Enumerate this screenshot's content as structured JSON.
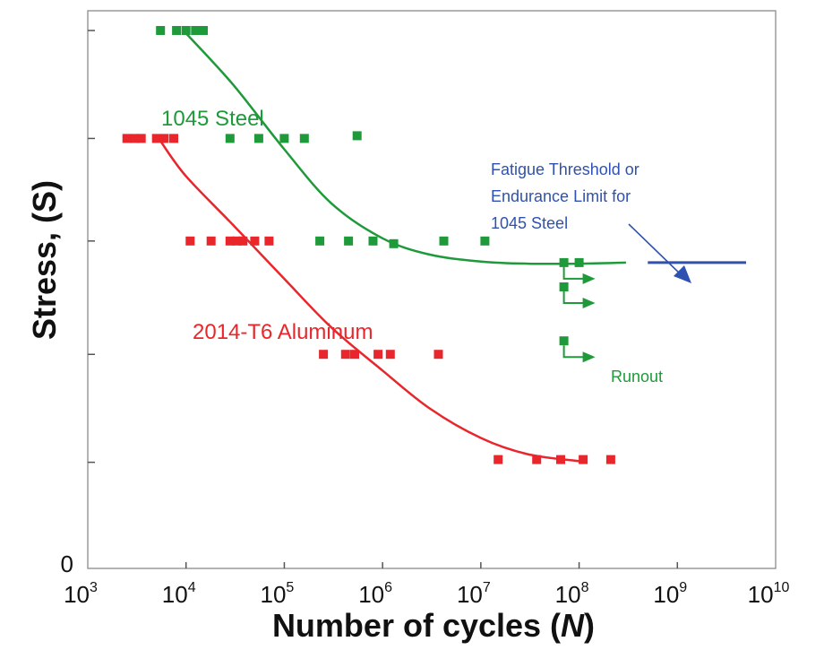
{
  "chart_data": {
    "type": "scatter",
    "xscale": "log",
    "xlabel": "Number of cycles (N)",
    "xlabel_parts": {
      "text": "Number of cycles (",
      "var": "N",
      "close": ")"
    },
    "ylabel": "Stress, (S)",
    "xlim": [
      1000,
      10000000000
    ],
    "ylim": [
      0,
      100
    ],
    "x_ticks": [
      {
        "value": 1000,
        "base": "10",
        "exp": "3"
      },
      {
        "value": 10000,
        "base": "10",
        "exp": "4"
      },
      {
        "value": 100000,
        "base": "10",
        "exp": "5"
      },
      {
        "value": 1000000,
        "base": "10",
        "exp": "6"
      },
      {
        "value": 10000000,
        "base": "10",
        "exp": "7"
      },
      {
        "value": 100000000,
        "base": "10",
        "exp": "8"
      },
      {
        "value": 1000000000,
        "base": "10",
        "exp": "9"
      },
      {
        "value": 10000000000,
        "base": "10",
        "exp": "10"
      }
    ],
    "y_ticks": [
      {
        "value": 0,
        "label": "0"
      },
      {
        "value": 18,
        "label": ""
      },
      {
        "value": 38,
        "label": ""
      },
      {
        "value": 59,
        "label": ""
      },
      {
        "value": 78,
        "label": ""
      },
      {
        "value": 98,
        "label": ""
      }
    ],
    "grid": false,
    "legend": "none",
    "series": [
      {
        "name": "1045 Steel",
        "color": "#1e9a3a",
        "points": [
          {
            "x": 5500,
            "y": 98
          },
          {
            "x": 8000,
            "y": 98
          },
          {
            "x": 10000,
            "y": 98
          },
          {
            "x": 12500,
            "y": 98
          },
          {
            "x": 15000,
            "y": 98
          },
          {
            "x": 28000,
            "y": 78
          },
          {
            "x": 55000,
            "y": 78
          },
          {
            "x": 100000,
            "y": 78
          },
          {
            "x": 160000,
            "y": 78
          },
          {
            "x": 550000,
            "y": 78.5
          },
          {
            "x": 230000,
            "y": 59
          },
          {
            "x": 450000,
            "y": 59
          },
          {
            "x": 800000,
            "y": 59
          },
          {
            "x": 1300000,
            "y": 58.5
          },
          {
            "x": 4200000,
            "y": 59
          },
          {
            "x": 11000000,
            "y": 59
          },
          {
            "x": 70000000,
            "y": 55
          },
          {
            "x": 100000000,
            "y": 55
          },
          {
            "x": 70000000,
            "y": 50.5
          },
          {
            "x": 70000000,
            "y": 40.5
          }
        ],
        "curve": [
          {
            "x": 10000,
            "y": 97.5
          },
          {
            "x": 30000,
            "y": 88
          },
          {
            "x": 100000,
            "y": 76
          },
          {
            "x": 300000,
            "y": 66
          },
          {
            "x": 1000000,
            "y": 59.5
          },
          {
            "x": 3000000,
            "y": 56.5
          },
          {
            "x": 10000000,
            "y": 55.2
          },
          {
            "x": 30000000,
            "y": 54.8
          },
          {
            "x": 100000000,
            "y": 54.8
          },
          {
            "x": 300000000,
            "y": 55
          }
        ],
        "runouts": [
          {
            "x": 70000000,
            "y": 55,
            "len": 1.7
          },
          {
            "x": 70000000,
            "y": 50.5,
            "len": 1.7
          },
          {
            "x": 70000000,
            "y": 40.5,
            "len": 1.8
          }
        ]
      },
      {
        "name": "2014-T6 Aluminum",
        "color": "#e8262b",
        "points": [
          {
            "x": 2500,
            "y": 78
          },
          {
            "x": 3000,
            "y": 78
          },
          {
            "x": 3500,
            "y": 78
          },
          {
            "x": 5000,
            "y": 78
          },
          {
            "x": 6000,
            "y": 78
          },
          {
            "x": 7500,
            "y": 78
          },
          {
            "x": 11000,
            "y": 59
          },
          {
            "x": 18000,
            "y": 59
          },
          {
            "x": 28000,
            "y": 59
          },
          {
            "x": 33000,
            "y": 59
          },
          {
            "x": 38000,
            "y": 59
          },
          {
            "x": 50000,
            "y": 59
          },
          {
            "x": 70000,
            "y": 59
          },
          {
            "x": 250000,
            "y": 38
          },
          {
            "x": 420000,
            "y": 38
          },
          {
            "x": 520000,
            "y": 38
          },
          {
            "x": 900000,
            "y": 38
          },
          {
            "x": 1200000,
            "y": 38
          },
          {
            "x": 3700000,
            "y": 38
          },
          {
            "x": 15000000,
            "y": 18.5
          },
          {
            "x": 37000000,
            "y": 18.5
          },
          {
            "x": 65000000,
            "y": 18.5
          },
          {
            "x": 110000000,
            "y": 18.5
          },
          {
            "x": 210000000,
            "y": 18.5
          }
        ],
        "curve": [
          {
            "x": 5500,
            "y": 77.5
          },
          {
            "x": 10000,
            "y": 71
          },
          {
            "x": 30000,
            "y": 62
          },
          {
            "x": 100000,
            "y": 52
          },
          {
            "x": 300000,
            "y": 43
          },
          {
            "x": 1000000,
            "y": 35
          },
          {
            "x": 3000000,
            "y": 28
          },
          {
            "x": 10000000,
            "y": 22.5
          },
          {
            "x": 30000000,
            "y": 19.5
          },
          {
            "x": 100000000,
            "y": 18.2
          }
        ]
      }
    ],
    "endurance_limit": {
      "color": "#2f52b0",
      "x_start": 500000000,
      "x_end": 5000000000,
      "y": 55
    },
    "annotations": {
      "steel_label": "1045 Steel",
      "aluminum_label": "2014-T6 Aluminum",
      "fatigue_lines": [
        "Fatigue Threshold or",
        "Endurance Limit for",
        "1045 Steel"
      ],
      "runout": "Runout"
    }
  }
}
